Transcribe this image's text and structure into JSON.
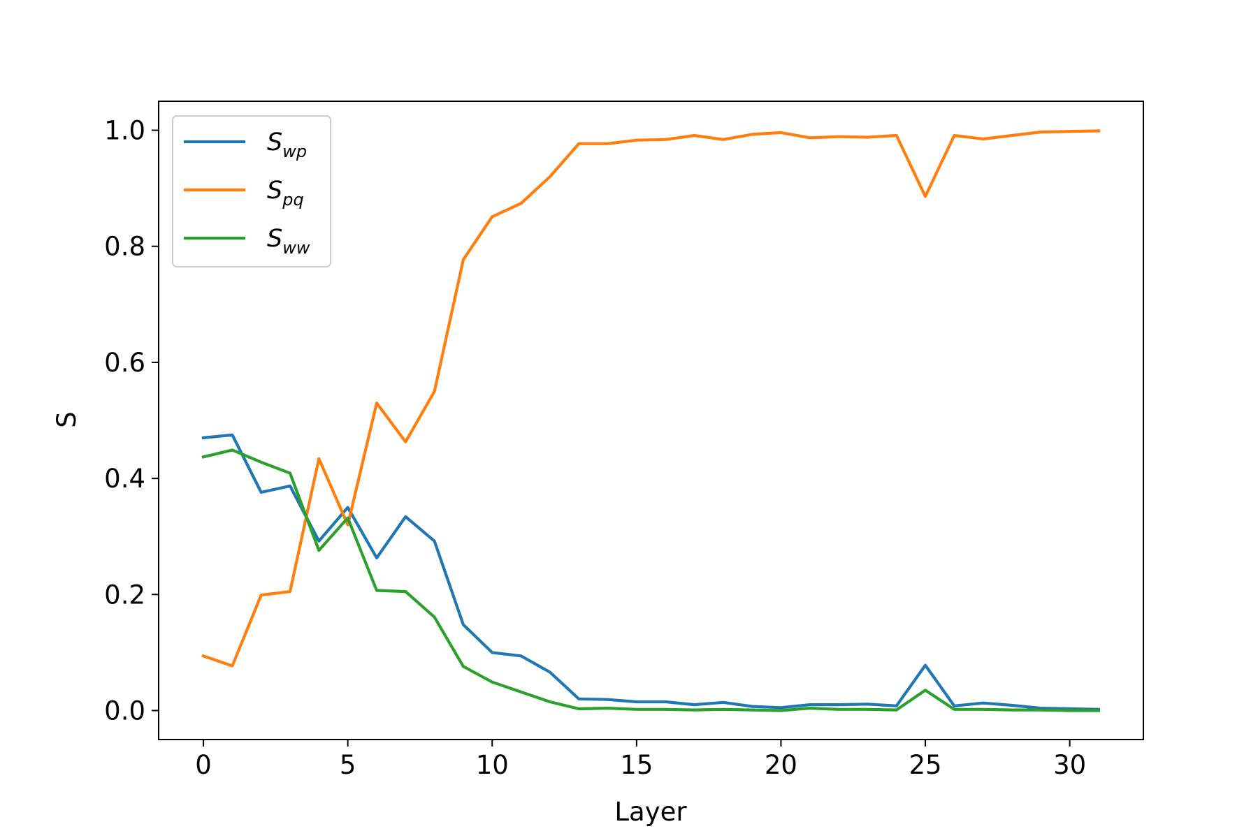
{
  "chart_data": {
    "type": "line",
    "title": "",
    "xlabel": "Layer",
    "ylabel": "S",
    "xlim": [
      -1.55,
      32.55
    ],
    "ylim": [
      -0.05,
      1.05
    ],
    "xticks": [
      0,
      5,
      10,
      15,
      20,
      25,
      30
    ],
    "xtick_labels": [
      "0",
      "5",
      "10",
      "15",
      "20",
      "25",
      "30"
    ],
    "yticks": [
      0.0,
      0.2,
      0.4,
      0.6,
      0.8,
      1.0
    ],
    "ytick_labels": [
      "0.0",
      "0.2",
      "0.4",
      "0.6",
      "0.8",
      "1.0"
    ],
    "grid": false,
    "legend_position": "top-left",
    "x": [
      0,
      1,
      2,
      3,
      4,
      5,
      6,
      7,
      8,
      9,
      10,
      11,
      12,
      13,
      14,
      15,
      16,
      17,
      18,
      19,
      20,
      21,
      22,
      23,
      24,
      25,
      26,
      27,
      28,
      29,
      30,
      31
    ],
    "series": [
      {
        "name": "S",
        "subscript": "wp",
        "color": "#1f77b4",
        "values": [
          0.47,
          0.475,
          0.376,
          0.387,
          0.292,
          0.35,
          0.263,
          0.334,
          0.292,
          0.148,
          0.1,
          0.094,
          0.066,
          0.02,
          0.019,
          0.015,
          0.015,
          0.01,
          0.014,
          0.007,
          0.005,
          0.01,
          0.01,
          0.011,
          0.008,
          0.078,
          0.008,
          0.013,
          0.009,
          0.004,
          0.003,
          0.002
        ]
      },
      {
        "name": "S",
        "subscript": "pq",
        "color": "#ff7f0e",
        "values": [
          0.094,
          0.077,
          0.199,
          0.205,
          0.434,
          0.32,
          0.53,
          0.463,
          0.55,
          0.777,
          0.851,
          0.874,
          0.92,
          0.977,
          0.977,
          0.983,
          0.984,
          0.991,
          0.984,
          0.993,
          0.996,
          0.987,
          0.989,
          0.988,
          0.991,
          0.886,
          0.991,
          0.985,
          0.991,
          0.997,
          0.998,
          0.999
        ]
      },
      {
        "name": "S",
        "subscript": "ww",
        "color": "#2ca02c",
        "values": [
          0.437,
          0.449,
          0.428,
          0.409,
          0.276,
          0.332,
          0.207,
          0.205,
          0.161,
          0.076,
          0.049,
          0.032,
          0.015,
          0.003,
          0.004,
          0.002,
          0.002,
          0.001,
          0.002,
          0.001,
          0.0,
          0.004,
          0.002,
          0.002,
          0.001,
          0.035,
          0.002,
          0.002,
          0.001,
          0.001,
          0.0,
          0.0
        ]
      }
    ]
  }
}
